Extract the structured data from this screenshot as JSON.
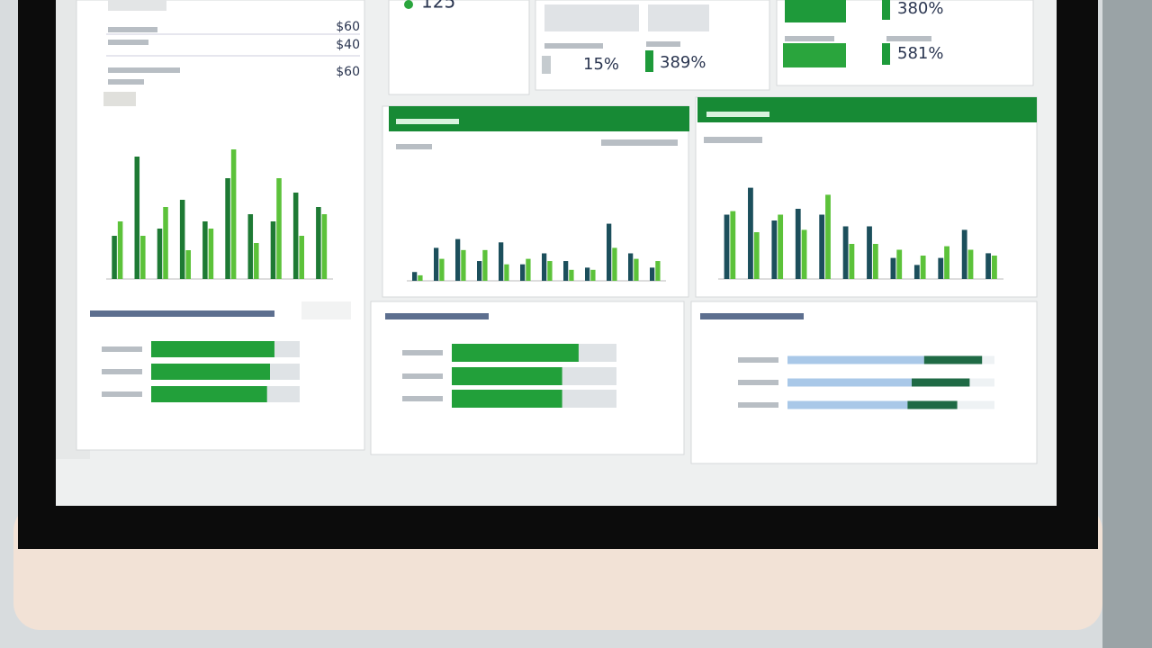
{
  "kpis": {
    "count": "125",
    "small": "15%",
    "middle": "389%",
    "top_right": "380%",
    "bottom_right": "581%"
  },
  "form_values": [
    "$60",
    "$40",
    "$60"
  ],
  "charts": [
    {
      "type": "bar",
      "ylim": [
        0,
        100
      ],
      "series": [
        {
          "color": "#1e7a34",
          "values": [
            30,
            85,
            35,
            55,
            40,
            70,
            45,
            40,
            60,
            50
          ]
        },
        {
          "color": "#5cc23a",
          "values": [
            40,
            30,
            50,
            20,
            35,
            90,
            25,
            70,
            30,
            45
          ]
        }
      ]
    },
    {
      "type": "bar",
      "ylim": [
        0,
        100
      ],
      "series": [
        {
          "color": "#1c4f5c",
          "values": [
            8,
            30,
            38,
            18,
            35,
            15,
            25,
            18,
            12,
            52,
            25,
            12
          ]
        },
        {
          "color": "#5cc23a",
          "values": [
            5,
            20,
            28,
            28,
            15,
            20,
            18,
            10,
            10,
            30,
            20,
            18
          ]
        }
      ]
    },
    {
      "type": "bar",
      "ylim": [
        0,
        100
      ],
      "series": [
        {
          "color": "#1c4f5c",
          "values": [
            55,
            78,
            50,
            60,
            55,
            45,
            45,
            18,
            12,
            18,
            42,
            22
          ]
        },
        {
          "color": "#5cc23a",
          "values": [
            58,
            40,
            55,
            42,
            72,
            30,
            30,
            25,
            20,
            28,
            25,
            20
          ]
        }
      ]
    }
  ],
  "progress": [
    {
      "xlim": [
        0,
        100
      ],
      "series": [
        {
          "color": "#22a03a",
          "values": [
            83,
            80,
            78
          ]
        }
      ]
    },
    {
      "xlim": [
        0,
        100
      ],
      "series": [
        {
          "color": "#22a03a",
          "values": [
            77,
            67,
            67
          ]
        }
      ]
    },
    {
      "xlim": [
        0,
        100
      ],
      "series": [
        {
          "color": "#a9c8e8",
          "values": [
            66,
            60,
            58
          ]
        },
        {
          "color": "#1f6a45",
          "values": [
            28,
            28,
            24
          ]
        }
      ]
    }
  ]
}
